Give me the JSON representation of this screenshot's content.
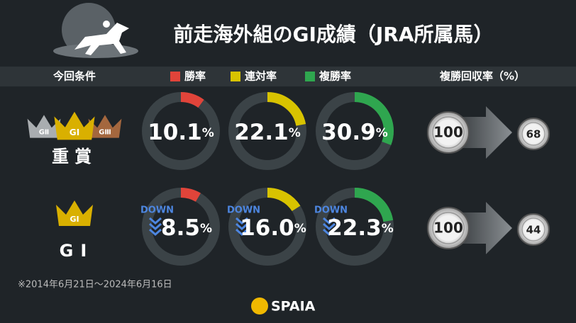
{
  "header": {
    "title": "前走海外組のGⅠ成績（JRA所属馬）"
  },
  "columns": {
    "condition": "今回条件",
    "legend": [
      {
        "name": "勝率",
        "color": "#e0443a"
      },
      {
        "name": "連対率",
        "color": "#d8c300"
      },
      {
        "name": "複勝率",
        "color": "#2fa64f"
      }
    ],
    "recovery": "複勝回収率（%）"
  },
  "unit": "%",
  "rows": [
    {
      "label": "重賞",
      "crowns": [
        "GⅡ",
        "GⅠ",
        "GⅢ"
      ],
      "down": null,
      "values": [
        10.1,
        22.1,
        30.9
      ],
      "value_labels": [
        "10.1",
        "22.1",
        "30.9"
      ],
      "recovery_from": 100,
      "recovery_to": 68
    },
    {
      "label": "GⅠ",
      "crowns": [
        "GⅠ"
      ],
      "down": "DOWN",
      "values": [
        8.5,
        16.0,
        22.3
      ],
      "value_labels": [
        "8.5",
        "16.0",
        "22.3"
      ],
      "recovery_from": 100,
      "recovery_to": 44
    }
  ],
  "footnote": "※2014年6月21日～2024年6月16日",
  "logo": "SPAIA"
}
